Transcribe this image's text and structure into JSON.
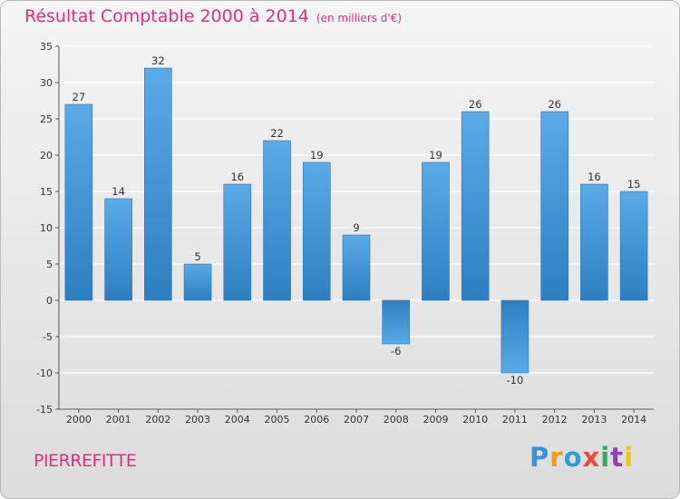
{
  "chart_data": {
    "type": "bar",
    "title": "Résultat Comptable 2000 à 2014",
    "subtitle": "(en milliers d'€)",
    "categories": [
      "2000",
      "2001",
      "2002",
      "2003",
      "2004",
      "2005",
      "2006",
      "2007",
      "2008",
      "2009",
      "2010",
      "2011",
      "2012",
      "2013",
      "2014"
    ],
    "values": [
      27,
      14,
      32,
      5,
      16,
      22,
      19,
      9,
      -6,
      19,
      26,
      -10,
      26,
      16,
      15
    ],
    "ylim": [
      -15,
      35
    ],
    "yticks": [
      -15,
      -10,
      -5,
      0,
      5,
      10,
      15,
      20,
      25,
      30,
      35
    ],
    "xlabel": "",
    "ylabel": "",
    "grid": "horizontal",
    "bar_color": "#3f8fd0"
  },
  "footer": {
    "commune": "PIERREFITTE",
    "logo_letters": [
      "P",
      "r",
      "o",
      "x",
      "i",
      "t",
      "i"
    ],
    "logo_colors": [
      "#3c8fdb",
      "#f39c12",
      "#2e9fd6",
      "#e74c3c",
      "#27ae60",
      "#8e44ad",
      "#f1c40f"
    ]
  },
  "colors": {
    "title": "#e0307a",
    "text": "#333333"
  }
}
